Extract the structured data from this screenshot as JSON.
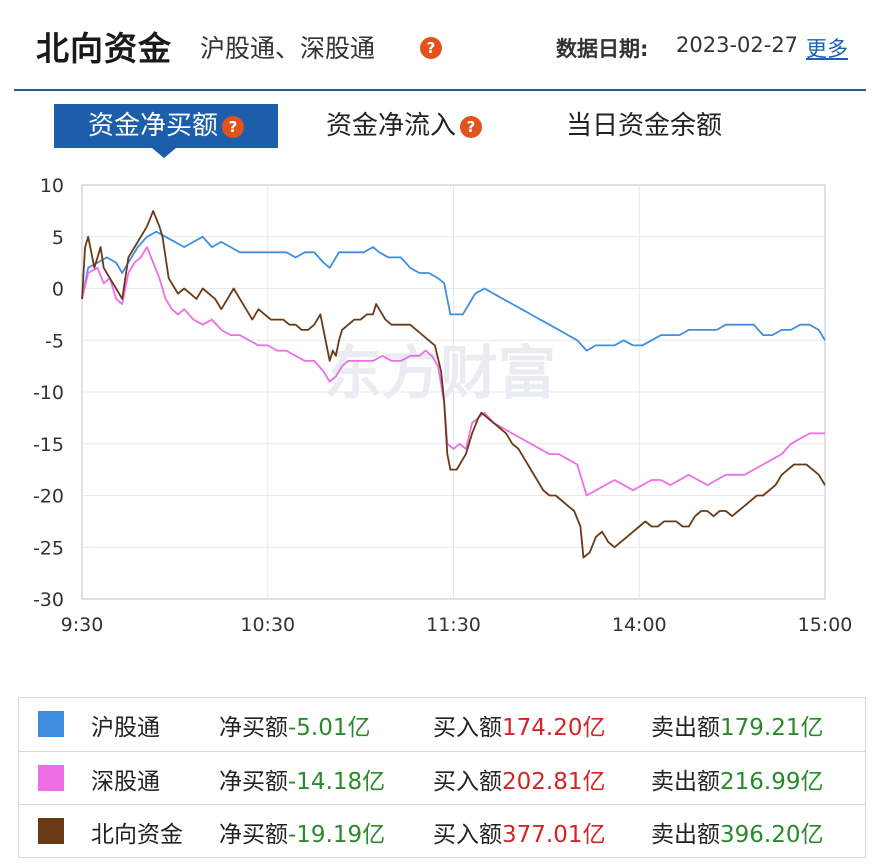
{
  "header": {
    "title": "北向资金",
    "subtitle": "沪股通、深股通",
    "date_label": "数据日期:",
    "date_value": "2023-02-27",
    "more": "更多",
    "help_glyph": "?"
  },
  "tabs": [
    {
      "label": "资金净买额",
      "active": true,
      "has_help": true
    },
    {
      "label": "资金净流入",
      "active": false,
      "has_help": true
    },
    {
      "label": "当日资金余额",
      "active": false,
      "has_help": false
    }
  ],
  "chart_data": {
    "type": "line",
    "watermark": "东方财富",
    "x_ticks": [
      "9:30",
      "10:30",
      "11:30",
      "14:00",
      "15:00"
    ],
    "y_ticks": [
      10,
      5,
      0,
      -5,
      -10,
      -15,
      -20,
      -25,
      -30
    ],
    "ylim": [
      -30,
      10
    ],
    "x_domain_minutes": [
      0,
      240
    ],
    "grid": true,
    "series": [
      {
        "name": "沪股通",
        "color": "#3f8ee0",
        "points": [
          [
            0,
            -1
          ],
          [
            2,
            2
          ],
          [
            5,
            2.5
          ],
          [
            8,
            3
          ],
          [
            11,
            2.5
          ],
          [
            13,
            1.5
          ],
          [
            15,
            2.5
          ],
          [
            18,
            4
          ],
          [
            21,
            5
          ],
          [
            24,
            5.5
          ],
          [
            27,
            5
          ],
          [
            30,
            4.5
          ],
          [
            33,
            4
          ],
          [
            36,
            4.5
          ],
          [
            39,
            5
          ],
          [
            42,
            4
          ],
          [
            45,
            4.5
          ],
          [
            48,
            4
          ],
          [
            51,
            3.5
          ],
          [
            54,
            3.5
          ],
          [
            57,
            3.5
          ],
          [
            60,
            3.5
          ],
          [
            63,
            3.5
          ],
          [
            66,
            3.5
          ],
          [
            69,
            3
          ],
          [
            72,
            3.5
          ],
          [
            75,
            3.5
          ],
          [
            78,
            2.5
          ],
          [
            80,
            2
          ],
          [
            83,
            3.5
          ],
          [
            86,
            3.5
          ],
          [
            88,
            3.5
          ],
          [
            91,
            3.5
          ],
          [
            94,
            4
          ],
          [
            96,
            3.5
          ],
          [
            99,
            3
          ],
          [
            101,
            3
          ],
          [
            103,
            3
          ],
          [
            106,
            2
          ],
          [
            109,
            1.5
          ],
          [
            112,
            1.5
          ],
          [
            115,
            1
          ],
          [
            117,
            0.5
          ],
          [
            119,
            -2.5
          ],
          [
            121,
            -2.5
          ],
          [
            123,
            -2.5
          ],
          [
            125,
            -1.5
          ],
          [
            127,
            -0.5
          ],
          [
            130,
            0
          ],
          [
            133,
            -0.5
          ],
          [
            136,
            -1
          ],
          [
            139,
            -1.5
          ],
          [
            142,
            -2
          ],
          [
            145,
            -2.5
          ],
          [
            148,
            -3
          ],
          [
            151,
            -3.5
          ],
          [
            154,
            -4
          ],
          [
            157,
            -4.5
          ],
          [
            160,
            -5
          ],
          [
            163,
            -6
          ],
          [
            166,
            -5.5
          ],
          [
            169,
            -5.5
          ],
          [
            172,
            -5.5
          ],
          [
            175,
            -5
          ],
          [
            178,
            -5.5
          ],
          [
            181,
            -5.5
          ],
          [
            184,
            -5
          ],
          [
            187,
            -4.5
          ],
          [
            190,
            -4.5
          ],
          [
            193,
            -4.5
          ],
          [
            196,
            -4
          ],
          [
            199,
            -4
          ],
          [
            202,
            -4
          ],
          [
            205,
            -4
          ],
          [
            208,
            -3.5
          ],
          [
            211,
            -3.5
          ],
          [
            214,
            -3.5
          ],
          [
            217,
            -3.5
          ],
          [
            220,
            -4.5
          ],
          [
            223,
            -4.5
          ],
          [
            226,
            -4
          ],
          [
            229,
            -4
          ],
          [
            232,
            -3.5
          ],
          [
            235,
            -3.5
          ],
          [
            238,
            -4
          ],
          [
            240,
            -5
          ]
        ]
      },
      {
        "name": "深股通",
        "color": "#ee6ee8",
        "points": [
          [
            0,
            -1
          ],
          [
            2,
            1.5
          ],
          [
            5,
            2
          ],
          [
            7,
            0.5
          ],
          [
            9,
            1
          ],
          [
            11,
            -1
          ],
          [
            13,
            -1.5
          ],
          [
            15,
            1.5
          ],
          [
            17,
            2.5
          ],
          [
            19,
            3
          ],
          [
            21,
            4
          ],
          [
            23,
            2.5
          ],
          [
            25,
            1
          ],
          [
            27,
            -1
          ],
          [
            29,
            -2
          ],
          [
            31,
            -2.5
          ],
          [
            33,
            -2
          ],
          [
            36,
            -3
          ],
          [
            39,
            -3.5
          ],
          [
            42,
            -3
          ],
          [
            45,
            -4
          ],
          [
            48,
            -4.5
          ],
          [
            51,
            -4.5
          ],
          [
            54,
            -5
          ],
          [
            57,
            -5.5
          ],
          [
            60,
            -5.5
          ],
          [
            63,
            -6
          ],
          [
            66,
            -6
          ],
          [
            69,
            -6.5
          ],
          [
            72,
            -7
          ],
          [
            75,
            -7
          ],
          [
            78,
            -8
          ],
          [
            80,
            -9
          ],
          [
            82,
            -8.5
          ],
          [
            84,
            -7.5
          ],
          [
            86,
            -7
          ],
          [
            88,
            -7
          ],
          [
            91,
            -7
          ],
          [
            94,
            -7
          ],
          [
            97,
            -6.5
          ],
          [
            100,
            -7
          ],
          [
            103,
            -7
          ],
          [
            106,
            -6.5
          ],
          [
            109,
            -6.5
          ],
          [
            111,
            -6
          ],
          [
            113,
            -6.5
          ],
          [
            115,
            -7.5
          ],
          [
            117,
            -11
          ],
          [
            118,
            -15
          ],
          [
            120,
            -15.5
          ],
          [
            122,
            -15
          ],
          [
            124,
            -15.5
          ],
          [
            126,
            -13
          ],
          [
            128,
            -12.5
          ],
          [
            130,
            -12
          ],
          [
            133,
            -13
          ],
          [
            136,
            -13.5
          ],
          [
            139,
            -14
          ],
          [
            142,
            -14.5
          ],
          [
            145,
            -15
          ],
          [
            148,
            -15.5
          ],
          [
            151,
            -16
          ],
          [
            154,
            -16
          ],
          [
            157,
            -16.5
          ],
          [
            160,
            -17
          ],
          [
            162,
            -19
          ],
          [
            163,
            -20
          ],
          [
            166,
            -19.5
          ],
          [
            169,
            -19
          ],
          [
            172,
            -18.5
          ],
          [
            175,
            -19
          ],
          [
            178,
            -19.5
          ],
          [
            181,
            -19
          ],
          [
            184,
            -18.5
          ],
          [
            187,
            -18.5
          ],
          [
            190,
            -19
          ],
          [
            193,
            -18.5
          ],
          [
            196,
            -18
          ],
          [
            199,
            -18.5
          ],
          [
            202,
            -19
          ],
          [
            205,
            -18.5
          ],
          [
            208,
            -18
          ],
          [
            211,
            -18
          ],
          [
            214,
            -18
          ],
          [
            217,
            -17.5
          ],
          [
            220,
            -17
          ],
          [
            223,
            -16.5
          ],
          [
            226,
            -16
          ],
          [
            229,
            -15
          ],
          [
            232,
            -14.5
          ],
          [
            235,
            -14
          ],
          [
            238,
            -14
          ],
          [
            240,
            -14
          ]
        ]
      },
      {
        "name": "北向资金",
        "color": "#6a3a17",
        "points": [
          [
            0,
            -1
          ],
          [
            1,
            4
          ],
          [
            2,
            5
          ],
          [
            3,
            3.5
          ],
          [
            4,
            2
          ],
          [
            5,
            3
          ],
          [
            6,
            4
          ],
          [
            7,
            2
          ],
          [
            9,
            1
          ],
          [
            11,
            0
          ],
          [
            13,
            -1
          ],
          [
            15,
            3
          ],
          [
            17,
            4
          ],
          [
            19,
            5
          ],
          [
            21,
            6
          ],
          [
            23,
            7.5
          ],
          [
            25,
            6
          ],
          [
            26,
            5
          ],
          [
            27,
            3
          ],
          [
            28,
            1
          ],
          [
            30,
            0
          ],
          [
            31,
            -0.5
          ],
          [
            33,
            0
          ],
          [
            35,
            -0.5
          ],
          [
            37,
            -1
          ],
          [
            39,
            0
          ],
          [
            41,
            -0.5
          ],
          [
            43,
            -1
          ],
          [
            45,
            -2
          ],
          [
            47,
            -1
          ],
          [
            49,
            0
          ],
          [
            51,
            -1
          ],
          [
            53,
            -2
          ],
          [
            55,
            -3
          ],
          [
            57,
            -2
          ],
          [
            59,
            -2.5
          ],
          [
            61,
            -3
          ],
          [
            63,
            -3
          ],
          [
            65,
            -3
          ],
          [
            67,
            -3.5
          ],
          [
            69,
            -3.5
          ],
          [
            71,
            -4
          ],
          [
            73,
            -4
          ],
          [
            75,
            -3.5
          ],
          [
            77,
            -2.5
          ],
          [
            78,
            -4
          ],
          [
            79,
            -5.5
          ],
          [
            80,
            -7
          ],
          [
            81,
            -6
          ],
          [
            82,
            -6.5
          ],
          [
            83,
            -5
          ],
          [
            84,
            -4
          ],
          [
            86,
            -3.5
          ],
          [
            88,
            -3
          ],
          [
            90,
            -3
          ],
          [
            92,
            -2.5
          ],
          [
            94,
            -2.5
          ],
          [
            95,
            -1.5
          ],
          [
            96,
            -2
          ],
          [
            98,
            -3
          ],
          [
            100,
            -3.5
          ],
          [
            102,
            -3.5
          ],
          [
            104,
            -3.5
          ],
          [
            106,
            -3.5
          ],
          [
            108,
            -4
          ],
          [
            110,
            -4.5
          ],
          [
            112,
            -5
          ],
          [
            114,
            -5.5
          ],
          [
            116,
            -8
          ],
          [
            117,
            -11
          ],
          [
            118,
            -16
          ],
          [
            119,
            -17.5
          ],
          [
            121,
            -17.5
          ],
          [
            122,
            -17
          ],
          [
            124,
            -16
          ],
          [
            126,
            -14
          ],
          [
            128,
            -12.5
          ],
          [
            129,
            -12
          ],
          [
            131,
            -12.5
          ],
          [
            133,
            -13
          ],
          [
            135,
            -13.5
          ],
          [
            137,
            -14
          ],
          [
            139,
            -15
          ],
          [
            141,
            -15.5
          ],
          [
            143,
            -16.5
          ],
          [
            145,
            -17.5
          ],
          [
            147,
            -18.5
          ],
          [
            149,
            -19.5
          ],
          [
            151,
            -20
          ],
          [
            153,
            -20
          ],
          [
            155,
            -20.5
          ],
          [
            157,
            -21
          ],
          [
            159,
            -21.5
          ],
          [
            161,
            -23
          ],
          [
            162,
            -26
          ],
          [
            164,
            -25.5
          ],
          [
            166,
            -24
          ],
          [
            168,
            -23.5
          ],
          [
            170,
            -24.5
          ],
          [
            172,
            -25
          ],
          [
            174,
            -24.5
          ],
          [
            176,
            -24
          ],
          [
            178,
            -23.5
          ],
          [
            180,
            -23
          ],
          [
            182,
            -22.5
          ],
          [
            184,
            -23
          ],
          [
            186,
            -23
          ],
          [
            188,
            -22.5
          ],
          [
            190,
            -22.5
          ],
          [
            192,
            -22.5
          ],
          [
            194,
            -23
          ],
          [
            196,
            -23
          ],
          [
            198,
            -22
          ],
          [
            200,
            -21.5
          ],
          [
            202,
            -21.5
          ],
          [
            204,
            -22
          ],
          [
            206,
            -21.5
          ],
          [
            208,
            -21.5
          ],
          [
            210,
            -22
          ],
          [
            212,
            -21.5
          ],
          [
            214,
            -21
          ],
          [
            216,
            -20.5
          ],
          [
            218,
            -20
          ],
          [
            220,
            -20
          ],
          [
            222,
            -19.5
          ],
          [
            224,
            -19
          ],
          [
            226,
            -18
          ],
          [
            228,
            -17.5
          ],
          [
            230,
            -17
          ],
          [
            232,
            -17
          ],
          [
            234,
            -17
          ],
          [
            236,
            -17.5
          ],
          [
            238,
            -18
          ],
          [
            240,
            -19
          ]
        ]
      }
    ]
  },
  "legend": [
    {
      "name": "沪股通",
      "color": "#3f8ee0",
      "net_label": "净买额",
      "net_value": "-5.01亿",
      "buy_label": "买入额",
      "buy_value": "174.20亿",
      "sell_label": "卖出额",
      "sell_value": "179.21亿"
    },
    {
      "name": "深股通",
      "color": "#ee6ee8",
      "net_label": "净买额",
      "net_value": "-14.18亿",
      "buy_label": "买入额",
      "buy_value": "202.81亿",
      "sell_label": "卖出额",
      "sell_value": "216.99亿"
    },
    {
      "name": "北向资金",
      "color": "#6a3a17",
      "net_label": "净买额",
      "net_value": "-19.19亿",
      "buy_label": "买入额",
      "buy_value": "377.01亿",
      "sell_label": "卖出额",
      "sell_value": "396.20亿"
    }
  ]
}
